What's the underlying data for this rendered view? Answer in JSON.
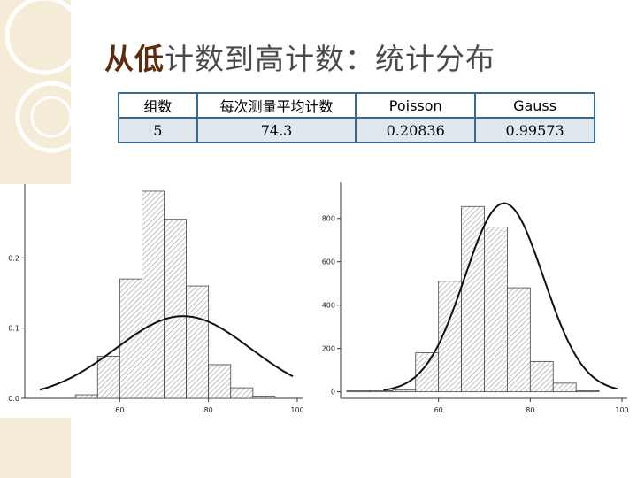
{
  "title": {
    "accent": "从低",
    "rest": "计数到高计数：统计分布"
  },
  "table": {
    "headers": [
      "组数",
      "每次测量平均计数",
      "Poisson",
      "Gauss"
    ],
    "row": [
      "5",
      "74.3",
      "0.20836",
      "0.99573"
    ]
  },
  "chart_data": [
    {
      "type": "bar",
      "categories": [
        40,
        45,
        50,
        55,
        60,
        65,
        70,
        75,
        80,
        85,
        90,
        95,
        100
      ],
      "values": [
        0,
        0,
        0.005,
        0.06,
        0.17,
        0.295,
        0.255,
        0.16,
        0.048,
        0.015,
        0.003,
        0,
        0
      ],
      "curve": {
        "type": "line",
        "mean": 74.3,
        "sigma": 15.2,
        "peak": 0.117
      },
      "xlim": [
        40,
        100
      ],
      "ylim": [
        0,
        0.3
      ],
      "xticks": [
        "60",
        "80",
        "100"
      ],
      "yticks": [
        "0.0",
        "0.1",
        "0.2"
      ],
      "title": "",
      "xlabel": "",
      "ylabel": ""
    },
    {
      "type": "bar",
      "categories": [
        40,
        45,
        50,
        55,
        60,
        65,
        70,
        75,
        80,
        85,
        90,
        95
      ],
      "values": [
        5,
        5,
        8,
        180,
        510,
        855,
        760,
        480,
        140,
        40,
        5,
        0
      ],
      "curve": {
        "type": "line",
        "mean": 74.3,
        "sigma": 8.6,
        "peak": 870
      },
      "xlim": [
        40,
        100
      ],
      "ylim": [
        -30,
        950
      ],
      "xticks": [
        "60",
        "80",
        "100"
      ],
      "yticks": [
        "0",
        "200",
        "400",
        "600",
        "800"
      ],
      "title": "",
      "xlabel": "",
      "ylabel": ""
    }
  ]
}
